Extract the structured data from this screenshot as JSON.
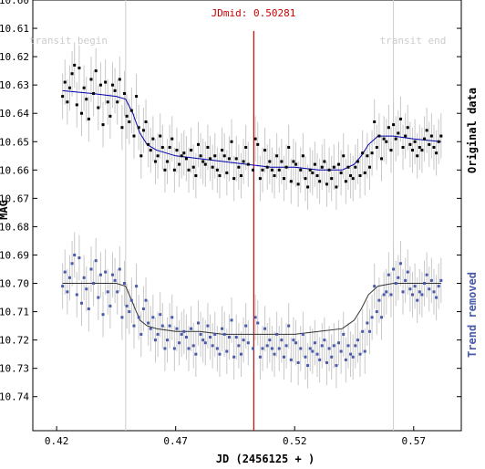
{
  "chart_data": {
    "type": "scatter",
    "xlabel": "JD (2456125 + )",
    "ylabel": "MAG",
    "xlim": [
      0.41,
      0.59
    ],
    "ylim": [
      10.6,
      10.752
    ],
    "y_inverted": true,
    "x_ticks": [
      0.42,
      0.47,
      0.52,
      0.57
    ],
    "x_tick_labels": [
      "0.42",
      "0.47",
      "0.52",
      "0.57"
    ],
    "y_ticks": [
      10.6,
      10.61,
      10.62,
      10.63,
      10.64,
      10.65,
      10.66,
      10.67,
      10.68,
      10.69,
      10.7,
      10.71,
      10.72,
      10.73,
      10.74
    ],
    "y_tick_labels": [
      "10.60",
      "10.61",
      "10.62",
      "10.63",
      "10.64",
      "10.65",
      "10.66",
      "10.67",
      "10.68",
      "10.69",
      "10.70",
      "10.71",
      "10.72",
      "10.73",
      "10.74"
    ],
    "jdmid": {
      "label": "JDmid: 0.50281",
      "x": 0.50281,
      "color": "#cc0000"
    },
    "transit_begin": {
      "label": "transit begin",
      "x": 0.449
    },
    "transit_end": {
      "label": "transit end",
      "x": 0.5615
    },
    "right_labels": {
      "top": "Original data",
      "bottom": "Trend removed"
    },
    "colors": {
      "original_points": "#000000",
      "original_fit": "#0000aa",
      "detrended_points": "#4a5aa8",
      "detrended_fit": "#333333",
      "error_bars": "#c8c8c8",
      "marker_lines": "#cccccc",
      "jdmid_line": "#cc0000"
    },
    "error_bar_halfwidth": 0.008,
    "series": [
      {
        "name": "Original data",
        "x": [
          0.4225,
          0.4235,
          0.4245,
          0.4255,
          0.4265,
          0.4275,
          0.4285,
          0.4295,
          0.4305,
          0.4315,
          0.4325,
          0.4335,
          0.4345,
          0.4355,
          0.4365,
          0.4375,
          0.4385,
          0.4395,
          0.4405,
          0.4415,
          0.4425,
          0.4435,
          0.4445,
          0.4455,
          0.4465,
          0.4475,
          0.4485,
          0.4495,
          0.4505,
          0.4515,
          0.4525,
          0.4535,
          0.4545,
          0.4555,
          0.4565,
          0.4575,
          0.4585,
          0.4595,
          0.4605,
          0.4615,
          0.4625,
          0.4635,
          0.4645,
          0.4655,
          0.4665,
          0.4675,
          0.4685,
          0.4695,
          0.4705,
          0.4715,
          0.4725,
          0.4735,
          0.4745,
          0.4755,
          0.4765,
          0.4775,
          0.4785,
          0.4795,
          0.4805,
          0.4815,
          0.4825,
          0.4835,
          0.4845,
          0.4855,
          0.4865,
          0.4875,
          0.4885,
          0.4895,
          0.4905,
          0.4915,
          0.4925,
          0.4935,
          0.4945,
          0.4955,
          0.4965,
          0.4975,
          0.4985,
          0.4995,
          0.5005,
          0.5025,
          0.5035,
          0.5045,
          0.5055,
          0.5065,
          0.5075,
          0.5085,
          0.5095,
          0.5105,
          0.5115,
          0.5125,
          0.5135,
          0.5145,
          0.5155,
          0.5165,
          0.5175,
          0.5185,
          0.5195,
          0.5205,
          0.5215,
          0.5225,
          0.5235,
          0.5245,
          0.5255,
          0.5265,
          0.5275,
          0.5285,
          0.5295,
          0.5305,
          0.5315,
          0.5325,
          0.5335,
          0.5345,
          0.5355,
          0.5365,
          0.5375,
          0.5385,
          0.5395,
          0.5405,
          0.5415,
          0.5425,
          0.5435,
          0.5445,
          0.5455,
          0.5465,
          0.5475,
          0.5485,
          0.5495,
          0.5505,
          0.5515,
          0.5525,
          0.5535,
          0.5545,
          0.5555,
          0.5565,
          0.5575,
          0.5585,
          0.5595,
          0.5605,
          0.5615,
          0.5625,
          0.5635,
          0.5645,
          0.5655,
          0.5665,
          0.5675,
          0.5685,
          0.5695,
          0.5705,
          0.5715,
          0.5725,
          0.5735,
          0.5745,
          0.5755,
          0.5765,
          0.5775,
          0.5785,
          0.5795,
          0.5805,
          0.5815
        ],
        "y": [
          10.634,
          10.629,
          10.636,
          10.631,
          10.626,
          10.623,
          10.637,
          10.624,
          10.64,
          10.631,
          10.635,
          10.642,
          10.628,
          10.633,
          10.625,
          10.638,
          10.63,
          10.644,
          10.629,
          10.636,
          10.641,
          10.63,
          10.632,
          10.636,
          10.628,
          10.645,
          10.633,
          10.641,
          10.643,
          10.639,
          10.648,
          10.634,
          10.645,
          10.655,
          10.646,
          10.643,
          10.651,
          10.653,
          10.649,
          10.657,
          10.655,
          10.648,
          10.652,
          10.66,
          10.657,
          10.652,
          10.649,
          10.66,
          10.653,
          10.658,
          10.655,
          10.654,
          10.656,
          10.66,
          10.653,
          10.659,
          10.662,
          10.651,
          10.655,
          10.657,
          10.658,
          10.652,
          10.656,
          10.659,
          10.655,
          10.66,
          10.662,
          10.653,
          10.655,
          10.661,
          10.656,
          10.65,
          10.663,
          10.656,
          10.659,
          10.662,
          10.657,
          10.652,
          10.658,
          10.66,
          10.649,
          10.651,
          10.663,
          10.66,
          10.653,
          10.659,
          10.657,
          10.66,
          10.662,
          10.655,
          10.66,
          10.657,
          10.663,
          10.659,
          10.652,
          10.664,
          10.657,
          10.658,
          10.665,
          10.66,
          10.655,
          10.663,
          10.666,
          10.66,
          10.661,
          10.658,
          10.662,
          10.664,
          10.659,
          10.657,
          10.665,
          10.66,
          10.663,
          10.659,
          10.666,
          10.658,
          10.661,
          10.655,
          10.664,
          10.659,
          10.662,
          10.663,
          10.659,
          10.657,
          10.662,
          10.654,
          10.661,
          10.655,
          10.659,
          10.654,
          10.643,
          10.652,
          10.648,
          10.656,
          10.649,
          10.65,
          10.645,
          10.653,
          10.644,
          10.649,
          10.647,
          10.642,
          10.652,
          10.648,
          10.645,
          10.651,
          10.653,
          10.65,
          10.655,
          10.652,
          10.653,
          10.649,
          10.646,
          10.651,
          10.648,
          10.652,
          10.654,
          10.65,
          10.648
        ]
      },
      {
        "name": "Trend removed",
        "x": [
          0.4225,
          0.4235,
          0.4245,
          0.4255,
          0.4265,
          0.4275,
          0.4285,
          0.4295,
          0.4305,
          0.4315,
          0.4325,
          0.4335,
          0.4345,
          0.4355,
          0.4365,
          0.4375,
          0.4385,
          0.4395,
          0.4405,
          0.4415,
          0.4425,
          0.4435,
          0.4445,
          0.4455,
          0.4465,
          0.4475,
          0.4485,
          0.4495,
          0.4505,
          0.4515,
          0.4525,
          0.4535,
          0.4545,
          0.4555,
          0.4565,
          0.4575,
          0.4585,
          0.4595,
          0.4605,
          0.4615,
          0.4625,
          0.4635,
          0.4645,
          0.4655,
          0.4665,
          0.4675,
          0.4685,
          0.4695,
          0.4705,
          0.4715,
          0.4725,
          0.4735,
          0.4745,
          0.4755,
          0.4765,
          0.4775,
          0.4785,
          0.4795,
          0.4805,
          0.4815,
          0.4825,
          0.4835,
          0.4845,
          0.4855,
          0.4865,
          0.4875,
          0.4885,
          0.4895,
          0.4905,
          0.4915,
          0.4925,
          0.4935,
          0.4945,
          0.4955,
          0.4965,
          0.4975,
          0.4985,
          0.4995,
          0.5005,
          0.5025,
          0.5035,
          0.5045,
          0.5055,
          0.5065,
          0.5075,
          0.5085,
          0.5095,
          0.5105,
          0.5115,
          0.5125,
          0.5135,
          0.5145,
          0.5155,
          0.5165,
          0.5175,
          0.5185,
          0.5195,
          0.5205,
          0.5215,
          0.5225,
          0.5235,
          0.5245,
          0.5255,
          0.5265,
          0.5275,
          0.5285,
          0.5295,
          0.5305,
          0.5315,
          0.5325,
          0.5335,
          0.5345,
          0.5355,
          0.5365,
          0.5375,
          0.5385,
          0.5395,
          0.5405,
          0.5415,
          0.5425,
          0.5435,
          0.5445,
          0.5455,
          0.5465,
          0.5475,
          0.5485,
          0.5495,
          0.5505,
          0.5515,
          0.5525,
          0.5535,
          0.5545,
          0.5555,
          0.5565,
          0.5575,
          0.5585,
          0.5595,
          0.5605,
          0.5615,
          0.5625,
          0.5635,
          0.5645,
          0.5655,
          0.5665,
          0.5675,
          0.5685,
          0.5695,
          0.5705,
          0.5715,
          0.5725,
          0.5735,
          0.5745,
          0.5755,
          0.5765,
          0.5775,
          0.5785,
          0.5795,
          0.5805,
          0.5815
        ],
        "y": [
          10.701,
          10.696,
          10.703,
          10.698,
          10.693,
          10.69,
          10.704,
          10.691,
          10.707,
          10.698,
          10.702,
          10.709,
          10.695,
          10.7,
          10.692,
          10.705,
          10.697,
          10.711,
          10.696,
          10.703,
          10.708,
          10.697,
          10.699,
          10.703,
          10.695,
          10.712,
          10.7,
          10.708,
          10.71,
          10.706,
          10.715,
          10.701,
          10.712,
          10.718,
          10.709,
          10.706,
          10.714,
          10.716,
          10.712,
          10.72,
          10.718,
          10.711,
          10.715,
          10.723,
          10.72,
          10.715,
          10.712,
          10.723,
          10.716,
          10.721,
          10.718,
          10.717,
          10.719,
          10.723,
          10.716,
          10.722,
          10.725,
          10.714,
          10.718,
          10.72,
          10.721,
          10.715,
          10.719,
          10.722,
          10.718,
          10.723,
          10.725,
          10.716,
          10.718,
          10.724,
          10.719,
          10.713,
          10.726,
          10.719,
          10.722,
          10.725,
          10.72,
          10.715,
          10.721,
          10.723,
          10.712,
          10.714,
          10.726,
          10.723,
          10.716,
          10.722,
          10.72,
          10.723,
          10.725,
          10.718,
          10.723,
          10.72,
          10.726,
          10.722,
          10.715,
          10.727,
          10.72,
          10.721,
          10.728,
          10.723,
          10.718,
          10.726,
          10.729,
          10.723,
          10.724,
          10.721,
          10.725,
          10.727,
          10.722,
          10.72,
          10.728,
          10.723,
          10.726,
          10.722,
          10.729,
          10.721,
          10.724,
          10.718,
          10.727,
          10.722,
          10.725,
          10.726,
          10.722,
          10.72,
          10.725,
          10.717,
          10.724,
          10.714,
          10.717,
          10.712,
          10.701,
          10.71,
          10.706,
          10.712,
          10.704,
          10.703,
          10.697,
          10.704,
          10.695,
          10.7,
          10.698,
          10.693,
          10.703,
          10.699,
          10.696,
          10.702,
          10.704,
          10.701,
          10.706,
          10.703,
          10.704,
          10.7,
          10.697,
          10.702,
          10.699,
          10.703,
          10.705,
          10.701,
          10.699
        ]
      }
    ],
    "fits": [
      {
        "x": [
          0.4225,
          0.435,
          0.445,
          0.449,
          0.452,
          0.455,
          0.458,
          0.462,
          0.47,
          0.48,
          0.49,
          0.5,
          0.51,
          0.52,
          0.53,
          0.535,
          0.54,
          0.545,
          0.548,
          0.551,
          0.555,
          0.5615,
          0.57,
          0.5815
        ],
        "y": [
          10.632,
          10.633,
          10.634,
          10.635,
          10.64,
          10.647,
          10.651,
          10.653,
          10.655,
          10.656,
          10.657,
          10.658,
          10.659,
          10.659,
          10.66,
          10.66,
          10.66,
          10.658,
          10.655,
          10.651,
          10.648,
          10.648,
          10.649,
          10.65
        ]
      },
      {
        "x": [
          0.4225,
          0.435,
          0.445,
          0.449,
          0.452,
          0.455,
          0.458,
          0.462,
          0.47,
          0.48,
          0.49,
          0.5,
          0.51,
          0.52,
          0.53,
          0.54,
          0.545,
          0.548,
          0.551,
          0.555,
          0.5615,
          0.57,
          0.5815
        ],
        "y": [
          10.7,
          10.7,
          10.7,
          10.701,
          10.707,
          10.713,
          10.715,
          10.716,
          10.717,
          10.717,
          10.718,
          10.718,
          10.718,
          10.718,
          10.717,
          10.716,
          10.713,
          10.709,
          10.704,
          10.701,
          10.7,
          10.7,
          10.7
        ]
      }
    ]
  }
}
